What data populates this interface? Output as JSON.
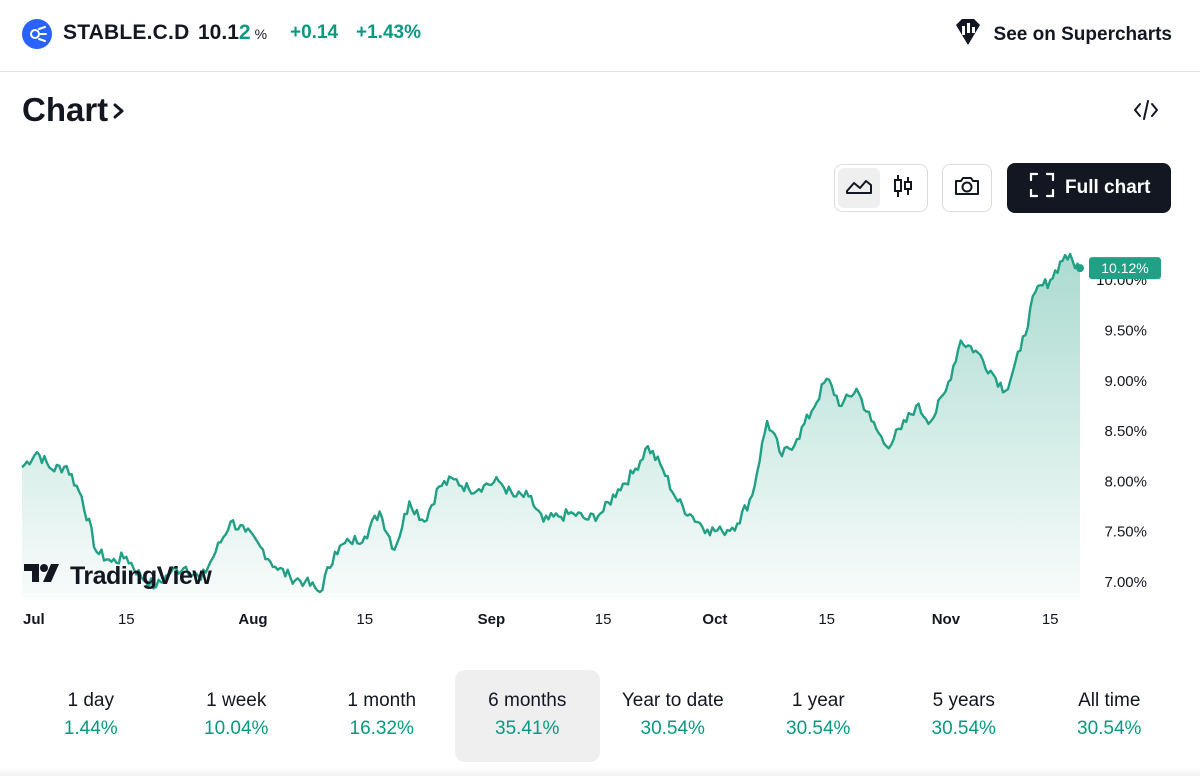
{
  "header": {
    "symbol": "STABLE.C.D",
    "price_main": "10.1",
    "price_last_digit": "2",
    "price_unit": "%",
    "change": "+0.14",
    "change_percent": "+1.43%",
    "supercharts_label": "See on Supercharts",
    "logo_icon": "stablecoin-dominance-icon",
    "accent_color": "#089981"
  },
  "chart_section": {
    "title": "Chart",
    "embed_icon": "code-embed-icon",
    "toolbar": {
      "area_icon": "area-chart-icon",
      "candles_icon": "candlestick-icon",
      "camera_icon": "camera-icon",
      "full_chart_label": "Full chart",
      "fullscreen_icon": "fullscreen-icon"
    },
    "watermark": "TradingView"
  },
  "chart_data": {
    "type": "area",
    "x": [
      "Jul 1",
      "Jul 3",
      "Jul 5",
      "Jul 7",
      "Jul 9",
      "Jul 11",
      "Jul 13",
      "Jul 15",
      "Jul 17",
      "Jul 19",
      "Jul 21",
      "Jul 23",
      "Jul 25",
      "Jul 27",
      "Jul 29",
      "Jul 31",
      "Aug 2",
      "Aug 4",
      "Aug 6",
      "Aug 8",
      "Aug 10",
      "Aug 12",
      "Aug 14",
      "Aug 16",
      "Aug 18",
      "Aug 20",
      "Aug 22",
      "Aug 24",
      "Aug 26",
      "Aug 28",
      "Aug 30",
      "Sep 1",
      "Sep 3",
      "Sep 5",
      "Sep 7",
      "Sep 9",
      "Sep 11",
      "Sep 13",
      "Sep 15",
      "Sep 17",
      "Sep 19",
      "Sep 21",
      "Sep 23",
      "Sep 25",
      "Sep 27",
      "Sep 29",
      "Oct 1",
      "Oct 3",
      "Oct 5",
      "Oct 7",
      "Oct 9",
      "Oct 11",
      "Oct 13",
      "Oct 15",
      "Oct 17",
      "Oct 19",
      "Oct 21",
      "Oct 23",
      "Oct 25",
      "Oct 27",
      "Oct 29",
      "Oct 31",
      "Nov 2",
      "Nov 4",
      "Nov 6",
      "Nov 8",
      "Nov 10",
      "Nov 12",
      "Nov 14",
      "Nov 16",
      "Nov 18",
      "Nov 19"
    ],
    "values": [
      8.14,
      8.29,
      8.12,
      8.15,
      7.85,
      7.3,
      7.2,
      7.25,
      7.05,
      6.95,
      7.1,
      7.15,
      7.02,
      7.3,
      7.6,
      7.5,
      7.35,
      7.15,
      7.05,
      7.0,
      6.9,
      7.3,
      7.4,
      7.45,
      7.7,
      7.32,
      7.8,
      7.6,
      7.95,
      8.02,
      7.92,
      7.96,
      8.0,
      7.85,
      7.85,
      7.6,
      7.65,
      7.68,
      7.62,
      7.7,
      7.92,
      8.08,
      8.35,
      8.12,
      7.8,
      7.65,
      7.52,
      7.5,
      7.58,
      7.86,
      8.6,
      8.25,
      8.42,
      8.7,
      9.02,
      8.75,
      8.92,
      8.6,
      8.35,
      8.52,
      8.75,
      8.6,
      8.9,
      9.4,
      9.3,
      9.1,
      8.9,
      9.3,
      9.88,
      10.0,
      10.25,
      10.12
    ],
    "x_ticks": [
      "Jul",
      "15",
      "Aug",
      "15",
      "Sep",
      "15",
      "Oct",
      "15",
      "Nov",
      "15"
    ],
    "y_ticks": [
      "7.00%",
      "7.50%",
      "8.00%",
      "8.50%",
      "9.00%",
      "9.50%",
      "10.00%"
    ],
    "ylim": [
      6.84,
      10.32
    ],
    "last_label": "10.12%",
    "line_color": "#22a085",
    "fill_color": "#22a085",
    "grid": false
  },
  "periods": [
    {
      "label": "1 day",
      "value": "1.44%"
    },
    {
      "label": "1 week",
      "value": "10.04%"
    },
    {
      "label": "1 month",
      "value": "16.32%"
    },
    {
      "label": "6 months",
      "value": "35.41%"
    },
    {
      "label": "Year to date",
      "value": "30.54%"
    },
    {
      "label": "1 year",
      "value": "30.54%"
    },
    {
      "label": "5 years",
      "value": "30.54%"
    },
    {
      "label": "All time",
      "value": "30.54%"
    }
  ],
  "active_period": "6 months"
}
